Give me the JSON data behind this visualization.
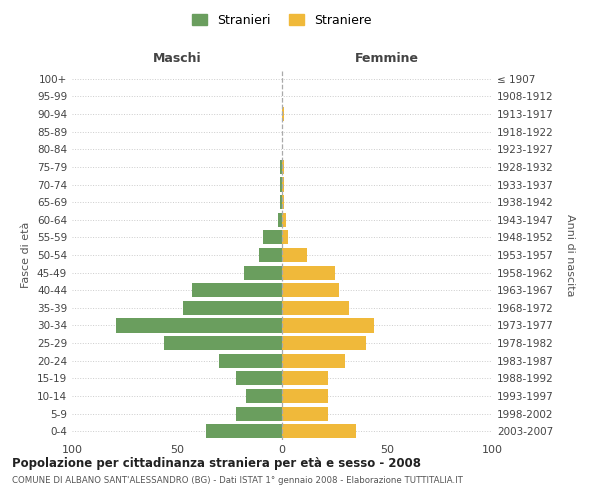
{
  "age_groups": [
    "0-4",
    "5-9",
    "10-14",
    "15-19",
    "20-24",
    "25-29",
    "30-34",
    "35-39",
    "40-44",
    "45-49",
    "50-54",
    "55-59",
    "60-64",
    "65-69",
    "70-74",
    "75-79",
    "80-84",
    "85-89",
    "90-94",
    "95-99",
    "100+"
  ],
  "birth_years": [
    "2003-2007",
    "1998-2002",
    "1993-1997",
    "1988-1992",
    "1983-1987",
    "1978-1982",
    "1973-1977",
    "1968-1972",
    "1963-1967",
    "1958-1962",
    "1953-1957",
    "1948-1952",
    "1943-1947",
    "1938-1942",
    "1933-1937",
    "1928-1932",
    "1923-1927",
    "1918-1922",
    "1913-1917",
    "1908-1912",
    "≤ 1907"
  ],
  "maschi": [
    36,
    22,
    17,
    22,
    30,
    56,
    79,
    47,
    43,
    18,
    11,
    9,
    2,
    1,
    1,
    1,
    0,
    0,
    0,
    0,
    0
  ],
  "femmine": [
    35,
    22,
    22,
    22,
    30,
    40,
    44,
    32,
    27,
    25,
    12,
    3,
    2,
    1,
    1,
    1,
    0,
    0,
    1,
    0,
    0
  ],
  "maschi_color": "#6a9e5e",
  "femmine_color": "#f0b93a",
  "background_color": "#ffffff",
  "grid_color": "#cccccc",
  "title1": "Popolazione per cittadinanza straniera per età e sesso - 2008",
  "title2": "COMUNE DI ALBANO SANT'ALESSANDRO (BG) - Dati ISTAT 1° gennaio 2008 - Elaborazione TUTTITALIA.IT",
  "maschi_label": "Stranieri",
  "femmine_label": "Straniere",
  "xlabel_left": "Maschi",
  "xlabel_right": "Femmine",
  "ylabel_left": "Fasce di età",
  "ylabel_right": "Anni di nascita",
  "xlim": 100,
  "xtick_labels": [
    "100",
    "50",
    "0",
    "50",
    "100"
  ]
}
